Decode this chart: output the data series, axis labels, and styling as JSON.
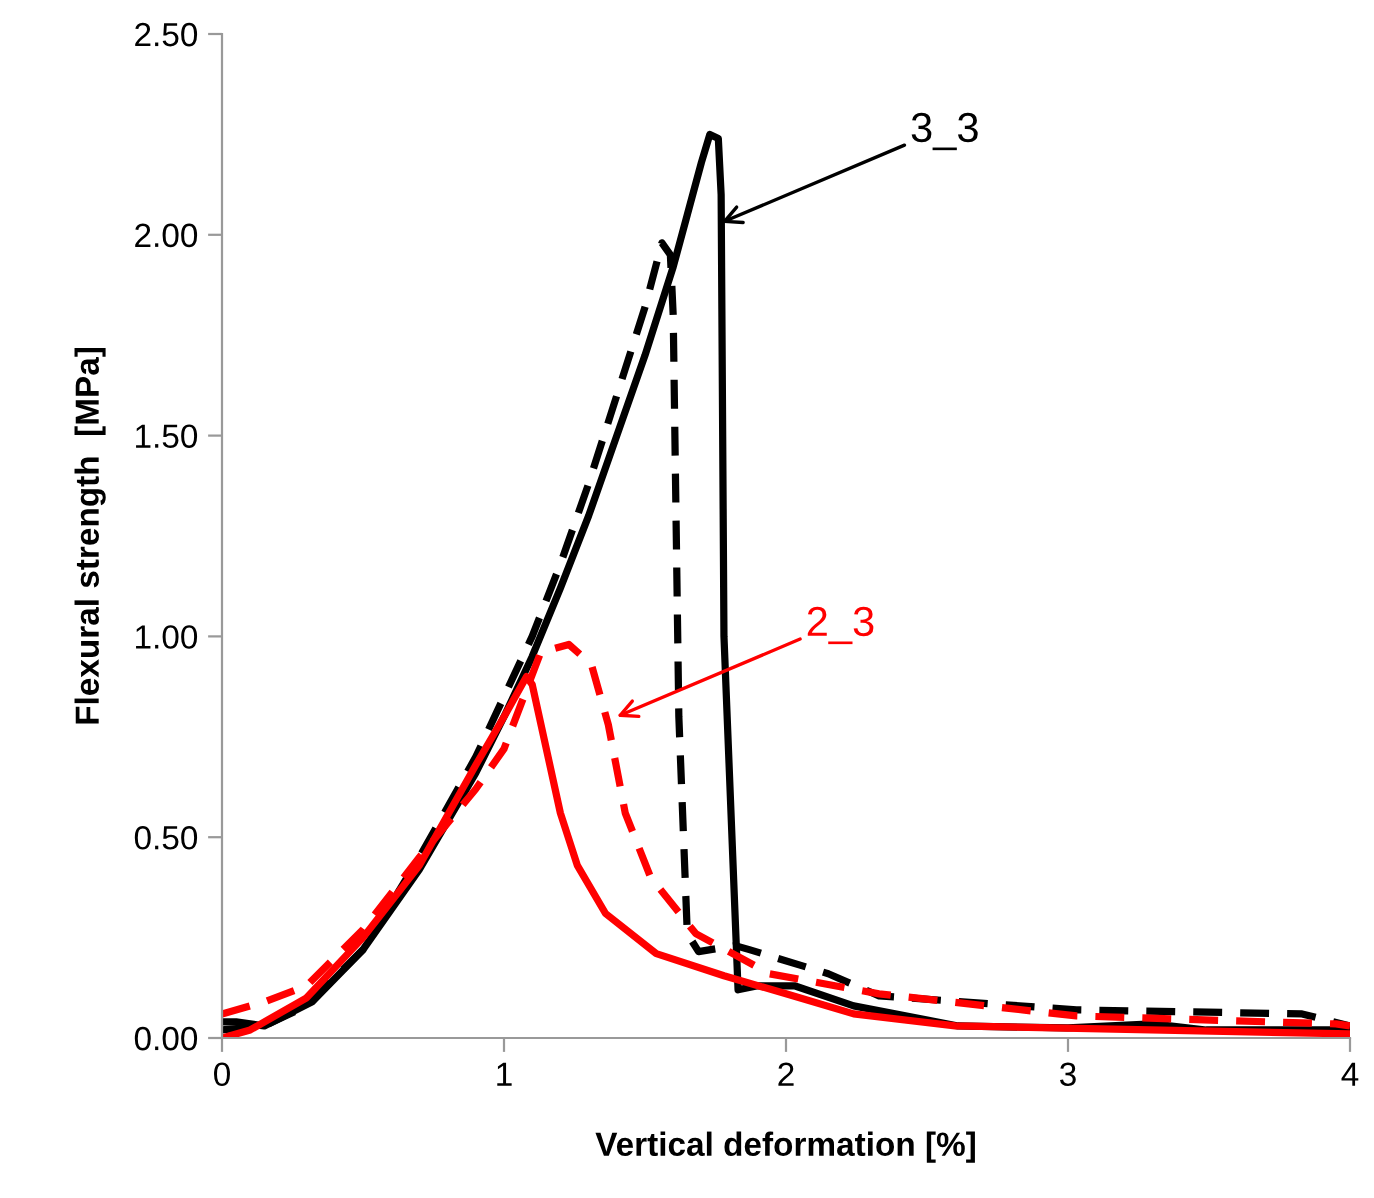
{
  "chart_data": {
    "type": "line",
    "xlabel": "Vertical deformation [%]",
    "ylabel": "Flexural strength  [MPa]",
    "xlim": [
      0,
      4
    ],
    "xticks": [
      0,
      1,
      2,
      3,
      4
    ],
    "ylim": [
      0,
      2.5
    ],
    "yticks": [
      {
        "value": 0,
        "label": "0.00"
      },
      {
        "value": 0.5,
        "label": "0.50"
      },
      {
        "value": 1,
        "label": "1.00"
      },
      {
        "value": 1.5,
        "label": "1.50"
      },
      {
        "value": 2,
        "label": "2.00"
      },
      {
        "value": 2.5,
        "label": "2.50"
      }
    ],
    "grid": false,
    "legend": false,
    "marker": "none",
    "series": [
      {
        "color": "#000000",
        "line_style": "solid",
        "x": [
          0,
          0.05,
          0.15,
          0.32,
          0.5,
          0.7,
          0.9,
          1.0,
          1.1,
          1.2,
          1.3,
          1.4,
          1.5,
          1.6,
          1.65,
          1.7,
          1.73,
          1.76,
          1.77,
          1.78,
          1.83,
          1.9,
          2.03,
          2.24,
          2.61,
          3.0,
          3.3,
          3.49,
          4.0
        ],
        "values": [
          0.04,
          0.04,
          0.03,
          0.09,
          0.22,
          0.42,
          0.66,
          0.8,
          0.95,
          1.12,
          1.3,
          1.5,
          1.7,
          1.92,
          2.05,
          2.18,
          2.25,
          2.24,
          2.1,
          1.0,
          0.12,
          0.13,
          0.13,
          0.08,
          0.03,
          0.025,
          0.035,
          0.02,
          0.02
        ]
      },
      {
        "color": "#000000",
        "line_style": "dashed",
        "x": [
          0,
          0.15,
          0.3,
          0.5,
          0.7,
          0.9,
          1.0,
          1.1,
          1.2,
          1.3,
          1.4,
          1.5,
          1.56,
          1.59,
          1.6,
          1.62,
          1.65,
          1.69,
          1.82,
          1.87,
          2.15,
          2.33,
          3.03,
          3.83,
          4.0
        ],
        "values": [
          0.02,
          0.03,
          0.08,
          0.22,
          0.45,
          0.7,
          0.85,
          1.0,
          1.18,
          1.38,
          1.6,
          1.82,
          1.98,
          1.95,
          1.8,
          0.8,
          0.26,
          0.215,
          0.23,
          0.22,
          0.16,
          0.105,
          0.07,
          0.06,
          0.03
        ]
      },
      {
        "color": "#ff0000",
        "line_style": "solid",
        "x": [
          0,
          0.1,
          0.3,
          0.5,
          0.7,
          0.9,
          1.0,
          1.08,
          1.1,
          1.2,
          1.26,
          1.36,
          1.54,
          1.78,
          2.0,
          2.24,
          2.6,
          4.0
        ],
        "values": [
          0.0,
          0.02,
          0.1,
          0.25,
          0.43,
          0.68,
          0.8,
          0.9,
          0.88,
          0.56,
          0.43,
          0.31,
          0.21,
          0.155,
          0.11,
          0.06,
          0.03,
          0.01
        ]
      },
      {
        "color": "#ff0000",
        "line_style": "dashed",
        "x": [
          0,
          0.15,
          0.3,
          0.5,
          0.7,
          0.9,
          1.0,
          1.13,
          1.23,
          1.31,
          1.37,
          1.43,
          1.52,
          1.68,
          1.89,
          1.94,
          2.33,
          3.03,
          3.95,
          4.0
        ],
        "values": [
          0.06,
          0.09,
          0.13,
          0.27,
          0.45,
          0.62,
          0.72,
          0.96,
          0.98,
          0.93,
          0.78,
          0.56,
          0.4,
          0.26,
          0.18,
          0.16,
          0.11,
          0.055,
          0.035,
          0.03
        ]
      }
    ],
    "annotations": [
      {
        "text": "3_3",
        "x": 1.77,
        "y": 2.03
      },
      {
        "text": "2_3",
        "x": 1.4,
        "y": 0.8
      }
    ]
  }
}
